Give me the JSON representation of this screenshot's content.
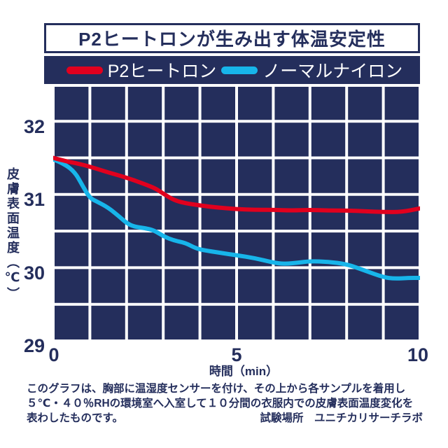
{
  "title": "P2ヒートロンが生み出す体温安定性",
  "legend": {
    "p2_label": "P2ヒートロン",
    "nylon_label": "ノーマルナイロン"
  },
  "colors": {
    "navy": "#242e5c",
    "red": "#e1001e",
    "cyan": "#17b5ea",
    "grid_line": "#ffffff"
  },
  "axes": {
    "y_ticks": [
      "32",
      "31",
      "30",
      "29"
    ],
    "x_ticks": [
      "0",
      "5",
      "10"
    ],
    "x_label": "時間（min）",
    "y_label": "皮膚表面温度（℃）"
  },
  "footer": {
    "line1": "このグラフは、胸部に温湿度センサーを付け、その上から各サンプルを着用し",
    "line2": "５℃・４０％RHの環境室へ入室して１０分間の衣服内での皮膚表面温度変化を",
    "line3_left": "表わしたものです。",
    "line3_right": "試験場所　ユニチカリサーチラボ"
  },
  "chart_data": {
    "type": "line",
    "title": "P2ヒートロンが生み出す体温安定性",
    "xlabel": "時間（min）",
    "ylabel": "皮膚表面温度（℃）",
    "xlim": [
      0,
      10
    ],
    "ylim": [
      29,
      32.47
    ],
    "x_tick_values": [
      0,
      5,
      10
    ],
    "y_tick_values": [
      29,
      30,
      31,
      32
    ],
    "grid": true,
    "grid_x_step": 1,
    "grid_y_step": 0.5,
    "legend_position": "top",
    "series": [
      {
        "name": "P2ヒートロン",
        "color": "#e1001e",
        "points": [
          [
            0,
            31.5
          ],
          [
            0.3,
            31.46
          ],
          [
            0.6,
            31.43
          ],
          [
            1,
            31.38
          ],
          [
            1.5,
            31.3
          ],
          [
            2,
            31.23
          ],
          [
            2.5,
            31.14
          ],
          [
            2.8,
            31.08
          ],
          [
            3,
            31.01
          ],
          [
            3.3,
            30.92
          ],
          [
            3.6,
            30.88
          ],
          [
            4,
            30.85
          ],
          [
            4.5,
            30.82
          ],
          [
            5,
            30.8
          ],
          [
            5.5,
            30.79
          ],
          [
            6,
            30.79
          ],
          [
            6.5,
            30.78
          ],
          [
            7,
            30.79
          ],
          [
            7.5,
            30.78
          ],
          [
            8,
            30.78
          ],
          [
            8.5,
            30.77
          ],
          [
            9,
            30.76
          ],
          [
            9.5,
            30.76
          ],
          [
            10,
            30.81
          ]
        ]
      },
      {
        "name": "ノーマルナイロン",
        "color": "#17b5ea",
        "points": [
          [
            0,
            31.48
          ],
          [
            0.3,
            31.42
          ],
          [
            0.6,
            31.3
          ],
          [
            0.8,
            31.12
          ],
          [
            1,
            30.95
          ],
          [
            1.2,
            30.9
          ],
          [
            1.5,
            30.82
          ],
          [
            1.8,
            30.7
          ],
          [
            2,
            30.61
          ],
          [
            2.2,
            30.56
          ],
          [
            2.5,
            30.54
          ],
          [
            2.75,
            30.51
          ],
          [
            3,
            30.43
          ],
          [
            3.3,
            30.37
          ],
          [
            3.6,
            30.34
          ],
          [
            3.9,
            30.26
          ],
          [
            4.2,
            30.23
          ],
          [
            4.6,
            30.2
          ],
          [
            5,
            30.17
          ],
          [
            5.5,
            30.13
          ],
          [
            6,
            30.07
          ],
          [
            6.3,
            30.05
          ],
          [
            6.7,
            30.07
          ],
          [
            7,
            30.09
          ],
          [
            7.5,
            30.08
          ],
          [
            8,
            30.05
          ],
          [
            8.5,
            29.96
          ],
          [
            9,
            29.87
          ],
          [
            9.3,
            29.85
          ],
          [
            9.7,
            29.86
          ],
          [
            10,
            29.86
          ]
        ]
      }
    ]
  }
}
